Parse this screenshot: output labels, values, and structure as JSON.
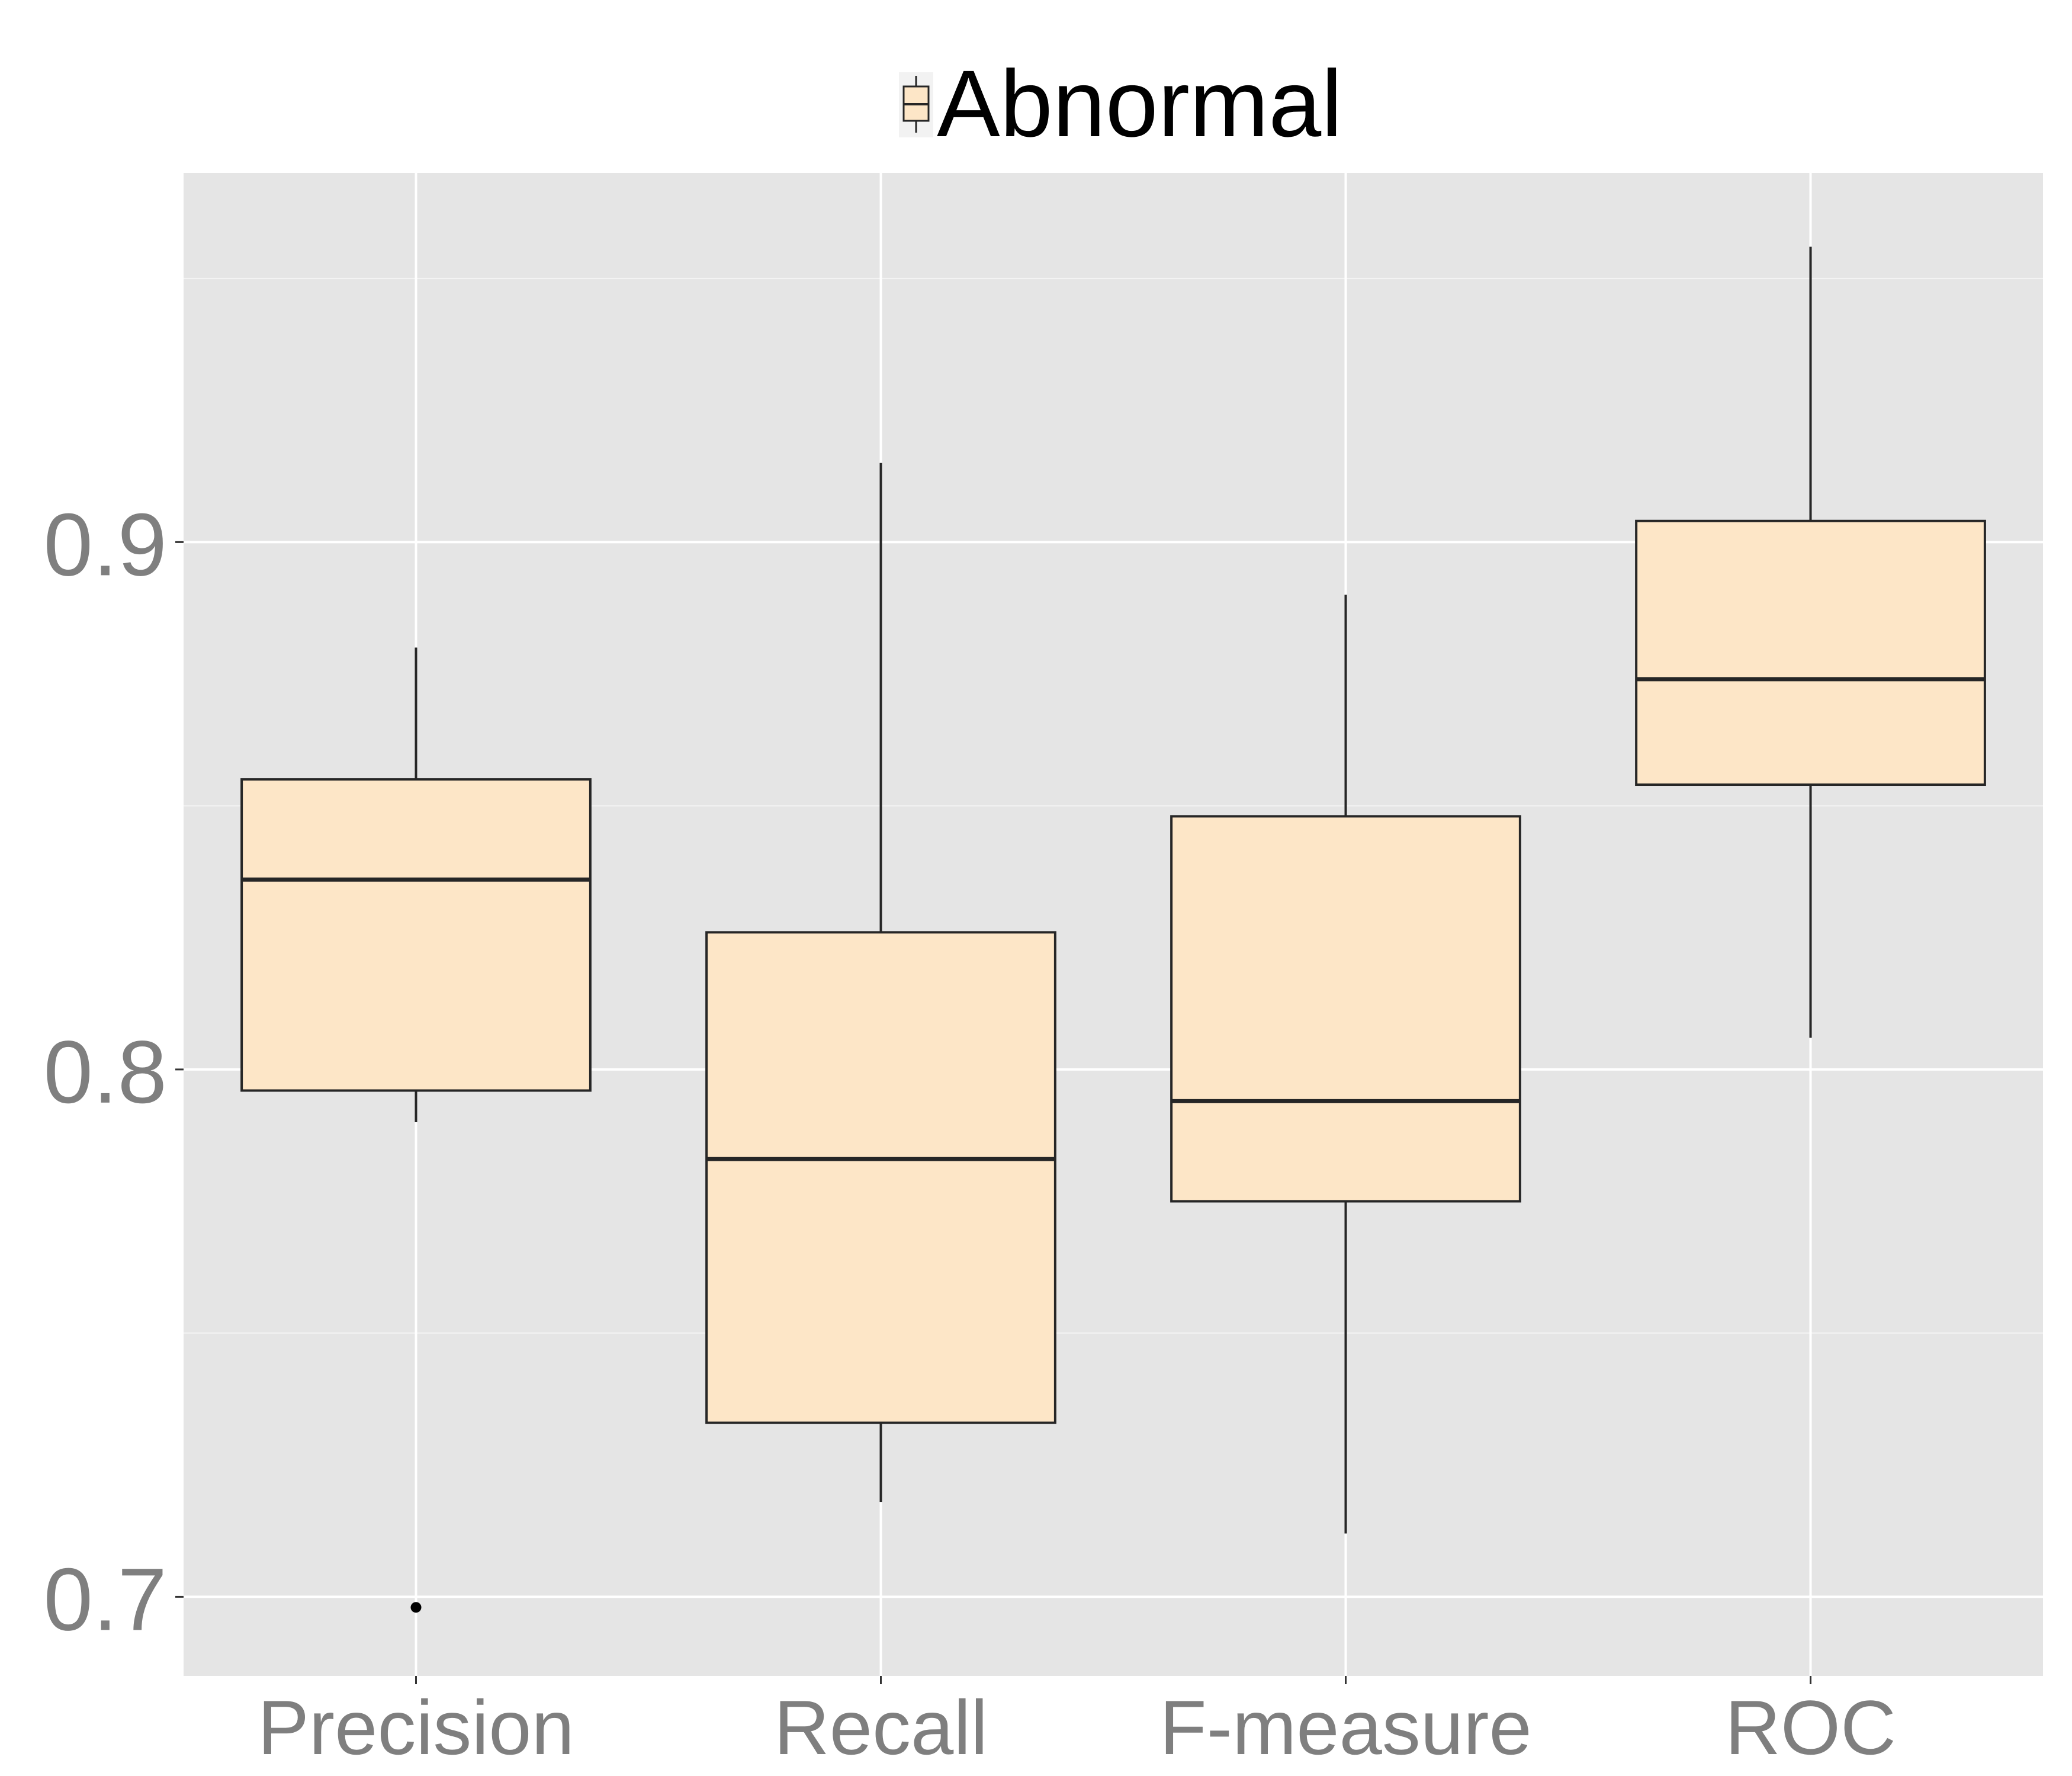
{
  "chart_data": {
    "type": "boxplot",
    "categories": [
      "Precision",
      "Recall",
      "F-measure",
      "ROC"
    ],
    "series": [
      {
        "name": "Abnormal",
        "boxes": [
          {
            "category": "Precision",
            "whisker_low": 0.79,
            "q1": 0.796,
            "median": 0.836,
            "q3": 0.855,
            "whisker_high": 0.88,
            "outliers": [
              0.698
            ]
          },
          {
            "category": "Recall",
            "whisker_low": 0.718,
            "q1": 0.733,
            "median": 0.783,
            "q3": 0.826,
            "whisker_high": 0.915,
            "outliers": []
          },
          {
            "category": "F-measure",
            "whisker_low": 0.712,
            "q1": 0.775,
            "median": 0.794,
            "q3": 0.848,
            "whisker_high": 0.89,
            "outliers": []
          },
          {
            "category": "ROC",
            "whisker_low": 0.806,
            "q1": 0.854,
            "median": 0.874,
            "q3": 0.904,
            "whisker_high": 0.956,
            "outliers": []
          }
        ]
      }
    ],
    "yticks": [
      0.7,
      0.8,
      0.9
    ],
    "ylim": [
      0.685,
      0.97
    ],
    "grid": true,
    "legend_position": "top",
    "colors": {
      "panel_background": "#e5e5e5",
      "gridline": "#ffffff",
      "box_fill": "#fde6c7",
      "box_stroke": "#262626",
      "tick_label": "#7f7f7f",
      "legend_text": "#000000"
    }
  }
}
